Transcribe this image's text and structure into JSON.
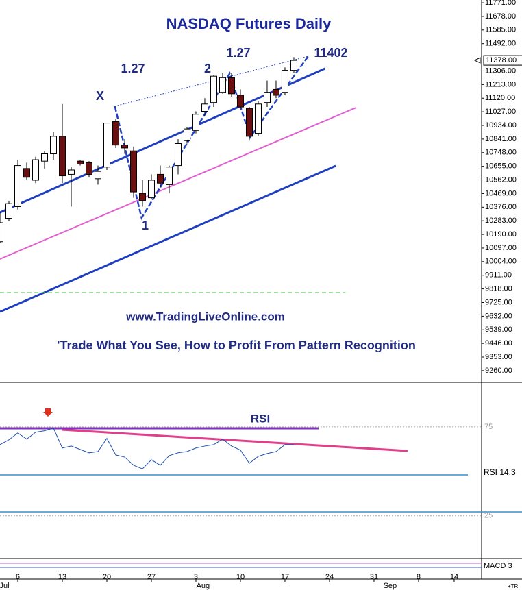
{
  "chart_data": {
    "type": "candlestick",
    "title": "NASDAQ Futures Daily",
    "annotations": [
      "1.27",
      "2",
      "1.27",
      "11402",
      "X",
      "1"
    ],
    "website": "www.TradingLiveOnline.com",
    "subtitle": "'Trade What You See, How to Profit From Pattern Recognition",
    "x": [
      -2,
      -1,
      0,
      1,
      2,
      3,
      4,
      5,
      6,
      7,
      8,
      9,
      10,
      11,
      12,
      13,
      14,
      15,
      16,
      17,
      18,
      19,
      20,
      21,
      22,
      23,
      24,
      25,
      26,
      27,
      28,
      29,
      30,
      31
    ],
    "open": [
      10140,
      10300,
      10380,
      10640,
      10560,
      10690,
      10740,
      10860,
      10600,
      10690,
      10680,
      10570,
      10650,
      10960,
      10800,
      10760,
      10470,
      10440,
      10600,
      10530,
      10660,
      10830,
      10900,
      11030,
      11090,
      11160,
      11260,
      11140,
      11050,
      10880,
      11090,
      11180,
      11160,
      11310
    ],
    "high": [
      10340,
      10420,
      10700,
      10680,
      10720,
      10760,
      10890,
      11080,
      10650,
      10700,
      10690,
      10660,
      10950,
      10980,
      10840,
      10790,
      10560,
      10600,
      10660,
      10660,
      10840,
      10920,
      11030,
      11120,
      11280,
      11290,
      11290,
      11180,
      11060,
      11100,
      11240,
      11240,
      11330,
      11400
    ],
    "low": [
      10130,
      10280,
      10360,
      10560,
      10540,
      10640,
      10700,
      10540,
      10380,
      10660,
      10580,
      10530,
      10630,
      10780,
      10740,
      10440,
      10380,
      10430,
      10510,
      10470,
      10600,
      10810,
      10880,
      11000,
      11060,
      11150,
      11130,
      11050,
      10830,
      10860,
      11060,
      11120,
      11140,
      11290
    ],
    "close": [
      10270,
      10400,
      10660,
      10580,
      10700,
      10740,
      10860,
      10590,
      10630,
      10670,
      10600,
      10620,
      10950,
      10800,
      10780,
      10480,
      10420,
      10560,
      10540,
      10650,
      10810,
      10910,
      11010,
      11080,
      11270,
      11260,
      11150,
      11060,
      10860,
      11080,
      11160,
      11140,
      11310,
      11378
    ],
    "up_color": "#ffffff",
    "down_color": "#6b1010",
    "xlim": [
      -2,
      52.08
    ],
    "xticks": [
      {
        "value": 0,
        "label": "6"
      },
      {
        "value": 5,
        "label": "13"
      },
      {
        "value": 10,
        "label": "20"
      },
      {
        "value": 15,
        "label": "27"
      },
      {
        "value": 20,
        "label": "3"
      },
      {
        "value": 25,
        "label": "10"
      },
      {
        "value": 30,
        "label": "17"
      },
      {
        "value": 35,
        "label": "24"
      },
      {
        "value": 40,
        "label": "31"
      },
      {
        "value": 45,
        "label": "8"
      },
      {
        "value": 49,
        "label": "14"
      }
    ],
    "month_ticks": [
      {
        "value": -1.5,
        "label": "Jul"
      },
      {
        "value": 20.8,
        "label": "Aug"
      },
      {
        "value": 41.8,
        "label": "Sep"
      }
    ],
    "ylim": [
      9180,
      11790
    ],
    "yticks": [
      {
        "value": 11771,
        "label": "11771.00"
      },
      {
        "value": 11678,
        "label": "11678.00"
      },
      {
        "value": 11585,
        "label": "11585.00"
      },
      {
        "value": 11492,
        "label": "11492.00"
      },
      {
        "value": 11306,
        "label": "11306.00"
      },
      {
        "value": 11213,
        "label": "11213.00"
      },
      {
        "value": 11120,
        "label": "11120.00"
      },
      {
        "value": 11027,
        "label": "11027.00"
      },
      {
        "value": 10934,
        "label": "10934.00"
      },
      {
        "value": 10841,
        "label": "10841.00"
      },
      {
        "value": 10748,
        "label": "10748.00"
      },
      {
        "value": 10655,
        "label": "10655.00"
      },
      {
        "value": 10562,
        "label": "10562.00"
      },
      {
        "value": 10469,
        "label": "10469.00"
      },
      {
        "value": 10376,
        "label": "10376.00"
      },
      {
        "value": 10283,
        "label": "10283.00"
      },
      {
        "value": 10190,
        "label": "10190.00"
      },
      {
        "value": 10097,
        "label": "10097.00"
      },
      {
        "value": 10004,
        "label": "10004.00"
      },
      {
        "value": 9911,
        "label": "9911.00"
      },
      {
        "value": 9818,
        "label": "9818.00"
      },
      {
        "value": 9725,
        "label": "9725.00"
      },
      {
        "value": 9632,
        "label": "9632.00"
      },
      {
        "value": 9539,
        "label": "9539.00"
      },
      {
        "value": 9446,
        "label": "9446.00"
      },
      {
        "value": 9353,
        "label": "9353.00"
      },
      {
        "value": 9260,
        "label": "9260.00"
      }
    ],
    "last_price": {
      "value": 11378,
      "label": "11378.00"
    },
    "lines": [
      {
        "color": "#1f3fbf",
        "width": 3,
        "points": [
          [
            -2,
            10340
          ],
          [
            34.5,
            11322
          ]
        ]
      },
      {
        "color": "#e060d0",
        "width": 2,
        "points": [
          [
            -2,
            10022
          ],
          [
            38,
            11056
          ]
        ]
      },
      {
        "color": "#1f3fbf",
        "width": 3,
        "points": [
          [
            -2,
            9662
          ],
          [
            35.7,
            10658
          ]
        ]
      },
      {
        "color": "#40c040",
        "width": 1,
        "dash": "6,4",
        "points": [
          [
            -2,
            9793
          ],
          [
            36.8,
            9793
          ]
        ]
      },
      {
        "color": "#2040c0",
        "width": 1,
        "dash": "2,2",
        "points": [
          [
            10.9,
            11065
          ],
          [
            32.6,
            11406
          ]
        ]
      },
      {
        "color": "#2040c0",
        "width": 2.5,
        "dash": "8,3",
        "points": [
          [
            10.9,
            11065
          ],
          [
            13.9,
            10303
          ],
          [
            23.8,
            11289
          ],
          [
            26.1,
            10854
          ],
          [
            32.6,
            11406
          ]
        ]
      }
    ],
    "rsi": {
      "label": "RSI",
      "legend": "RSI  14,3",
      "color": "#2050b0",
      "values": [
        65.0,
        67.7,
        71.6,
        68.1,
        72.0,
        72.8,
        74.3,
        63.1,
        64.2,
        62.3,
        60.4,
        61.1,
        68.5,
        59.2,
        58.0,
        53.4,
        51.4,
        56.5,
        53.4,
        58.8,
        60.4,
        61.1,
        63.1,
        64.2,
        65.0,
        68.1,
        64.2,
        61.9,
        54.5,
        58.4,
        60.0,
        61.1,
        65.0,
        65.0
      ],
      "ylim": [
        1,
        100
      ],
      "yticks": [
        75,
        25
      ]
    },
    "macd_label": "MACD  3",
    "corner_label": "+TR"
  }
}
